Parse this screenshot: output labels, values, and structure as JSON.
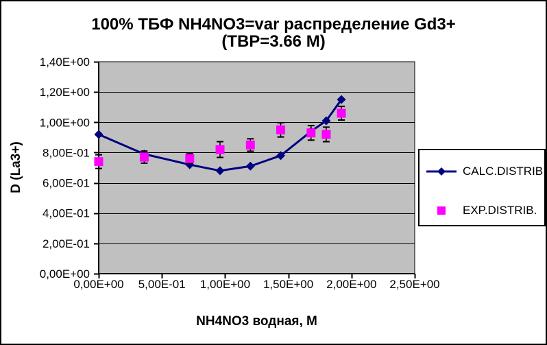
{
  "chart": {
    "title_line1": "100% ТБФ  NH4NO3=var распределение Gd3+",
    "title_line2": "(TBP=3.66 M)",
    "y_axis_title": "D (La3+)",
    "x_axis_title": "NH4NO3  водная, М"
  },
  "colors": {
    "calc_series": "#000080",
    "exp_series": "#FF00FF",
    "plot_background": "#C0C0C0",
    "gridline": "#000000",
    "text": "#000000",
    "legend_background": "#FFFFFF"
  },
  "chart_data": {
    "type": "line",
    "title": "100% ТБФ  NH4NO3=var распределение Gd3+ (TBP=3.66 M)",
    "xlabel": "NH4NO3  водная, М",
    "ylabel": "D (La3+)",
    "xlim": [
      0,
      2.5
    ],
    "ylim": [
      0,
      1.4
    ],
    "x_ticks": [
      0,
      0.5,
      1.0,
      1.5,
      2.0,
      2.5
    ],
    "x_tick_labels": [
      "0,00E+00",
      "5,00E-01",
      "1,00E+00",
      "1,50E+00",
      "2,00E+00",
      "2,50E+00"
    ],
    "y_ticks": [
      0,
      0.2,
      0.4,
      0.6,
      0.8,
      1.0,
      1.2,
      1.4
    ],
    "y_tick_labels": [
      "0,00E+00",
      "2,00E-01",
      "4,00E-01",
      "6,00E-01",
      "8,00E-01",
      "1,00E+00",
      "1,20E+00",
      "1,40E+00"
    ],
    "grid": "horizontal",
    "legend_position": "right",
    "x": [
      0.0,
      0.36,
      0.72,
      0.96,
      1.2,
      1.44,
      1.68,
      1.8,
      1.92
    ],
    "series": [
      {
        "name": "CALC.DISTRIB",
        "type": "line",
        "marker": "diamond",
        "color": "#000080",
        "values": [
          0.92,
          0.79,
          0.72,
          0.68,
          0.71,
          0.78,
          0.94,
          1.01,
          1.15
        ]
      },
      {
        "name": "EXP.DISTRIB.",
        "type": "scatter",
        "marker": "square",
        "color": "#FF00FF",
        "values": [
          0.74,
          0.77,
          0.76,
          0.82,
          0.85,
          0.95,
          0.93,
          0.92,
          1.06
        ],
        "error_y": [
          0.045,
          0.04,
          0.032,
          0.052,
          0.041,
          0.047,
          0.048,
          0.048,
          0.045
        ]
      }
    ]
  }
}
